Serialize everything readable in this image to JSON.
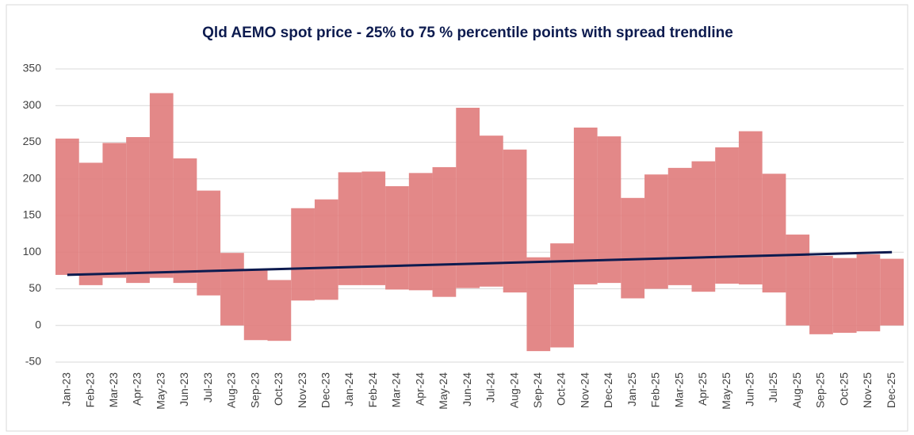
{
  "chart_data": {
    "type": "floating-bar",
    "title": "Qld AEMO spot price - 25% to 75 % percentile points with spread trendline",
    "categories": [
      "Jan-23",
      "Feb-23",
      "Mar-23",
      "Apr-23",
      "May-23",
      "Jun-23",
      "Jul-23",
      "Aug-23",
      "Sep-23",
      "Oct-23",
      "Nov-23",
      "Dec-23",
      "Jan-24",
      "Feb-24",
      "Mar-24",
      "Apr-24",
      "May-24",
      "Jun-24",
      "Jul-24",
      "Aug-24",
      "Sep-24",
      "Oct-24",
      "Nov-24",
      "Dec-24",
      "Jan-25",
      "Feb-25",
      "Mar-25",
      "Apr-25",
      "May-25",
      "Jun-25",
      "Jul-25",
      "Aug-25",
      "Sep-25",
      "Oct-25",
      "Nov-25",
      "Dec-25"
    ],
    "lows": [
      69,
      55,
      65,
      58,
      65,
      58,
      41,
      0,
      -20,
      -21,
      34,
      35,
      55,
      55,
      49,
      48,
      39,
      51,
      53,
      45,
      -35,
      -30,
      56,
      58,
      37,
      50,
      55,
      46,
      57,
      56,
      45,
      0,
      -12,
      -10,
      -8,
      0
    ],
    "highs": [
      255,
      222,
      249,
      257,
      317,
      228,
      184,
      99,
      75,
      62,
      160,
      172,
      209,
      210,
      190,
      208,
      216,
      297,
      259,
      240,
      93,
      112,
      270,
      258,
      174,
      206,
      215,
      224,
      243,
      265,
      207,
      124,
      95,
      92,
      97,
      91
    ],
    "color": "#e07b7b",
    "trendline": {
      "values": [
        69,
        100
      ],
      "color": "#0d1b4f"
    },
    "ylim": [
      -50,
      350
    ],
    "yticks": [
      -50,
      0,
      50,
      100,
      150,
      200,
      250,
      300,
      350
    ],
    "grid": true
  }
}
